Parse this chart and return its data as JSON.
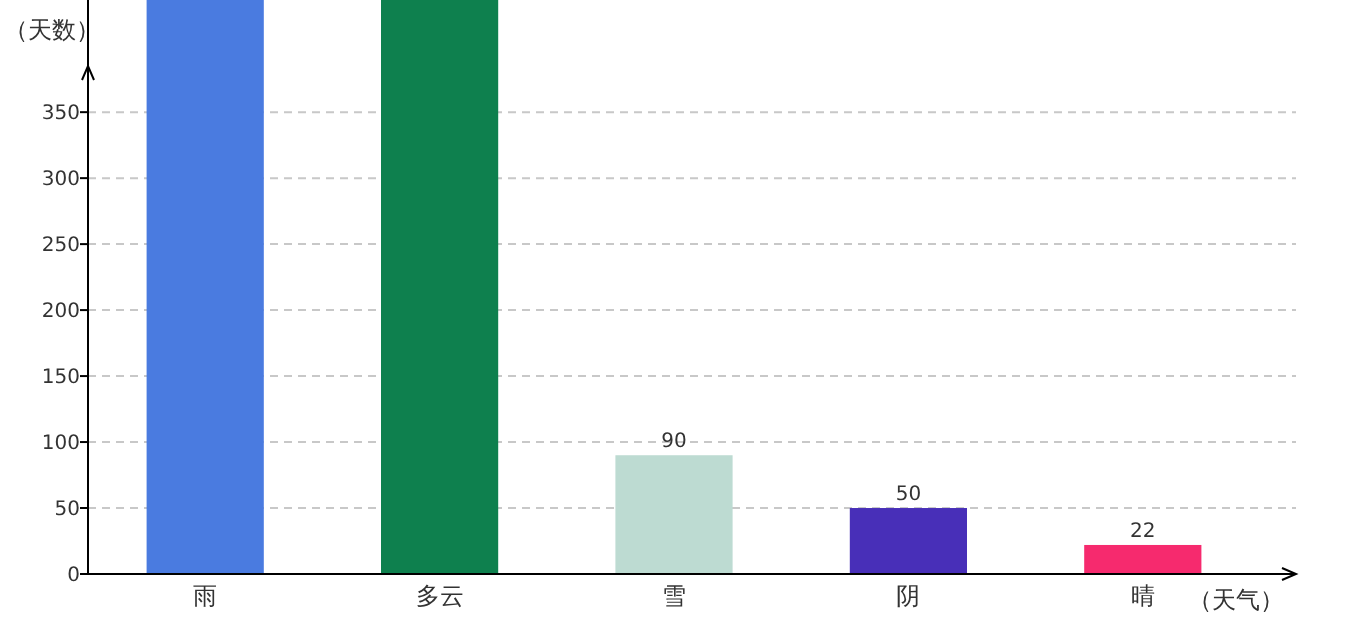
{
  "chart_data": {
    "type": "bar",
    "xlabel": "（天气）",
    "ylabel": "（天数）",
    "categories": [
      "雨",
      "多云",
      "雪",
      "阴",
      "晴"
    ],
    "values": [
      435,
      435,
      90,
      50,
      22
    ],
    "colors": [
      "#4a7be0",
      "#0e804e",
      "#bddbd2",
      "#482fb8",
      "#f62a6e"
    ],
    "value_labels": [
      null,
      null,
      "90",
      "50",
      "22"
    ],
    "ylim": [
      0,
      435
    ],
    "yticks": [
      0,
      50,
      100,
      150,
      200,
      250,
      300,
      350
    ],
    "grid": "y"
  }
}
